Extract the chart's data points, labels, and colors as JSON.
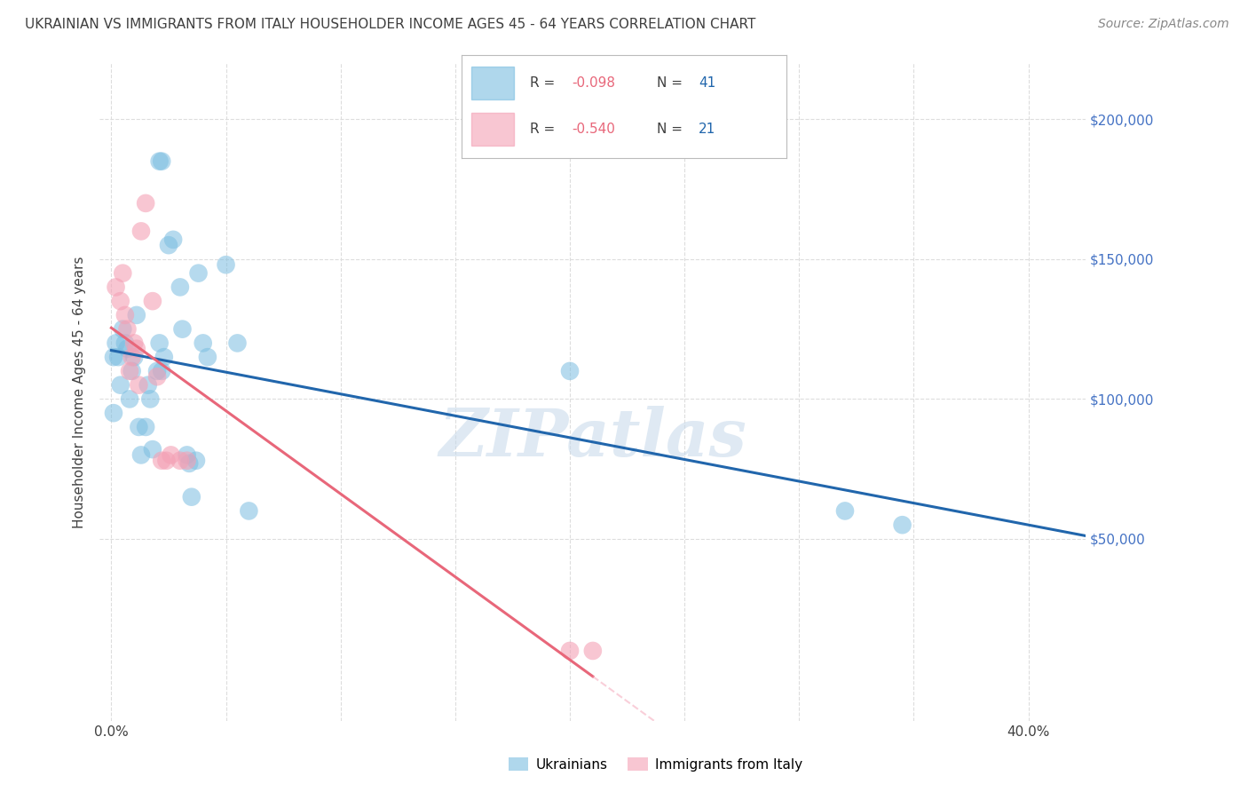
{
  "title": "UKRAINIAN VS IMMIGRANTS FROM ITALY HOUSEHOLDER INCOME AGES 45 - 64 YEARS CORRELATION CHART",
  "source": "Source: ZipAtlas.com",
  "ylabel": "Householder Income Ages 45 - 64 years",
  "watermark": "ZIPatlas",
  "legend_ukr_r": "-0.098",
  "legend_ukr_n": "41",
  "legend_ita_r": "-0.540",
  "legend_ita_n": "21",
  "ytick_vals": [
    50000,
    100000,
    150000,
    200000
  ],
  "xtick_positions": [
    0.0,
    0.05,
    0.1,
    0.15,
    0.2,
    0.25,
    0.3,
    0.35,
    0.4
  ],
  "xlim": [
    -0.005,
    0.425
  ],
  "ylim": [
    -15000,
    220000
  ],
  "blue_scatter": "#7bbde0",
  "pink_scatter": "#f4a0b5",
  "blue_line": "#2166ac",
  "pink_line": "#e8677a",
  "pink_line_dashed": "#f4a0b5",
  "grid_color": "#dddddd",
  "ytick_color": "#4472c4",
  "title_color": "#404040",
  "source_color": "#888888",
  "ukrainians_x": [
    0.001,
    0.001,
    0.002,
    0.003,
    0.004,
    0.005,
    0.006,
    0.007,
    0.008,
    0.009,
    0.01,
    0.011,
    0.012,
    0.013,
    0.015,
    0.016,
    0.017,
    0.018,
    0.02,
    0.021,
    0.022,
    0.023,
    0.025,
    0.027,
    0.03,
    0.031,
    0.033,
    0.034,
    0.035,
    0.037,
    0.038,
    0.04,
    0.042,
    0.05,
    0.055,
    0.06,
    0.2,
    0.32,
    0.345,
    0.021,
    0.022
  ],
  "ukrainians_y": [
    115000,
    95000,
    120000,
    115000,
    105000,
    125000,
    120000,
    118000,
    100000,
    110000,
    115000,
    130000,
    90000,
    80000,
    90000,
    105000,
    100000,
    82000,
    110000,
    120000,
    110000,
    115000,
    155000,
    157000,
    140000,
    125000,
    80000,
    77000,
    65000,
    78000,
    145000,
    120000,
    115000,
    148000,
    120000,
    60000,
    110000,
    60000,
    55000,
    185000,
    185000
  ],
  "italians_x": [
    0.002,
    0.004,
    0.005,
    0.006,
    0.007,
    0.008,
    0.009,
    0.01,
    0.011,
    0.012,
    0.013,
    0.015,
    0.018,
    0.02,
    0.022,
    0.024,
    0.026,
    0.03,
    0.033,
    0.2,
    0.21
  ],
  "italians_y": [
    140000,
    135000,
    145000,
    130000,
    125000,
    110000,
    115000,
    120000,
    118000,
    105000,
    160000,
    170000,
    135000,
    108000,
    78000,
    78000,
    80000,
    78000,
    78000,
    10000,
    10000
  ]
}
